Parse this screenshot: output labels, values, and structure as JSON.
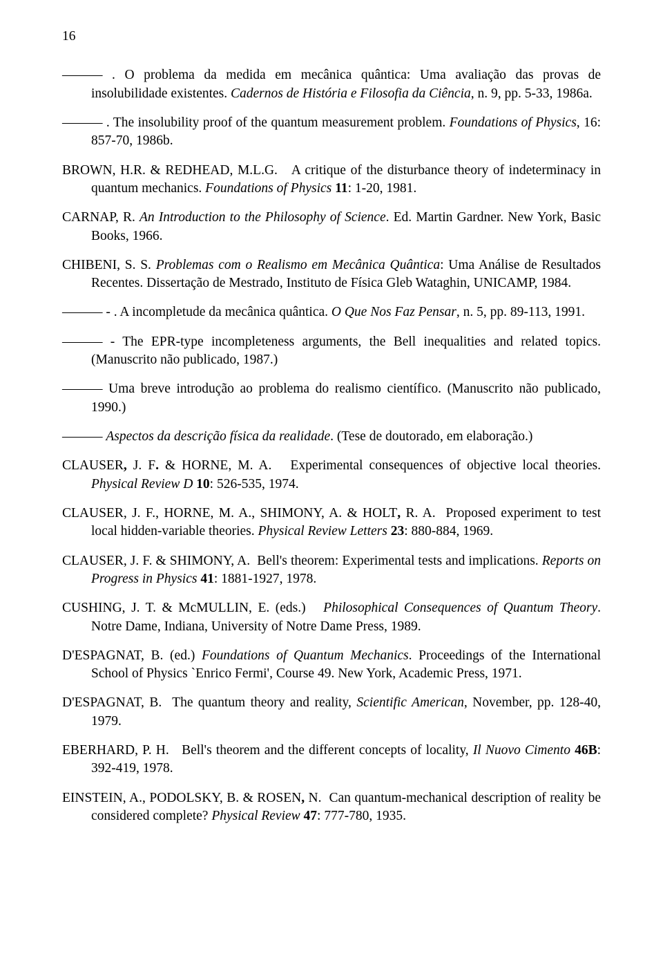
{
  "pageNumber": "16",
  "refs": [
    {
      "html": "——— . O problema da medida em mecânica quântica: Uma avaliação das provas de insolubilidade existentes. <span class='italic'>Cadernos de História e Filosofia da Ciência</span>, n. 9, pp. 5-33, 1986a."
    },
    {
      "html": "——— . The insolubility proof of the quantum measurement problem. <span class='italic'>Foundations of Physics</span>, 16: 857-70, 1986b."
    },
    {
      "html": "BROWN, H.R. & REDHEAD, M.L.G.&nbsp;&nbsp;&nbsp;A critique of the disturbance theory of indeterminacy in quantum mechanics. <span class='italic'>Foundations of Physics</span> <span class='bold'>11</span>: 1-20, 1981."
    },
    {
      "html": "CARNAP, R. <span class='italic'>An Introduction to the Philosophy of Science</span>. Ed. Martin Gardner. New York, Basic Books, 1966."
    },
    {
      "html": "CHIBENI, S. S. <span class='italic'>Problemas com o Realismo em Mecânica Quântica</span>: Uma Análise de Resultados Recentes. Dissertação de Mestrado, Instituto de Física Gleb Wataghin, UNICAMP, 1984."
    },
    {
      "html": "——— - . A incompletude da mecânica quântica. <span class='italic'>O Que Nos Faz Pensar</span>, n. 5, pp. 89-113, 1991."
    },
    {
      "html": "——— - The EPR-type incompleteness arguments, the Bell inequalities and related topics. (Manuscrito não publicado, 1987.)"
    },
    {
      "html": "——— Uma breve introdução ao problema do realismo científico. (Manuscrito não publicado, 1990.)"
    },
    {
      "html": "——— <span class='italic'>Aspectos da descrição física da realidade</span>. (Tese de doutorado, em elaboração.)"
    },
    {
      "html": "CLAUSER<span class='bold'>,</span> J. F<span class='bold'>.</span> & HORNE, M. A.&nbsp;&nbsp;&nbsp;Experimental consequences of objective local theories. <span class='italic'>Physical Review D</span> <span class='bold'>10</span>: 526-535, 1974."
    },
    {
      "html": "CLAUSER, J. F., HORNE, M. A., SHIMONY, A. & HOLT<span class='bold'>,</span> R. A.&nbsp;&nbsp;Proposed experiment to test local hidden-variable theories. <span class='italic'>Physical Review Letters</span> <span class='bold'>23</span>: 880-884, 1969."
    },
    {
      "html": "CLAUSER, J. F. & SHIMONY, A.&nbsp;&nbsp;Bell's theorem: Experimental tests and implications. <span class='italic'>Reports on Progress in Physics</span> <span class='bold'>41</span>: 1881-1927, 1978."
    },
    {
      "html": "CUSHING, J. T. & McMULLIN, E. (eds.)&nbsp;&nbsp;&nbsp;<span class='italic'>Philosophical Consequences of Quantum Theory</span>. Notre Dame, Indiana, University of Notre Dame Press, 1989."
    },
    {
      "html": "D'ESPAGNAT, B. (ed.) <span class='italic'>Foundations of Quantum Mechanics</span>. Proceedings of the International School of Physics `Enrico Fermi', Course 49. New York, Academic Press, 1971."
    },
    {
      "html": "D'ESPAGNAT, B.&nbsp;&nbsp;The quantum theory and reality, <span class='italic'>Scientific American</span>, November, pp. 128-40, 1979."
    },
    {
      "html": "EBERHARD, P. H.&nbsp;&nbsp;&nbsp;Bell's theorem and the different concepts of locality, <span class='italic'>Il Nuovo Cimento</span> <span class='bold'>46B</span>: 392-419, 1978."
    },
    {
      "html": "EINSTEIN, A., PODOLSKY, B. & ROSEN<span class='bold'>,</span> N.&nbsp;&nbsp;Can quantum-mechanical description of reality be considered complete? <span class='italic'>Physical Review</span> <span class='bold'>47</span>: 777-780, 1935."
    }
  ]
}
